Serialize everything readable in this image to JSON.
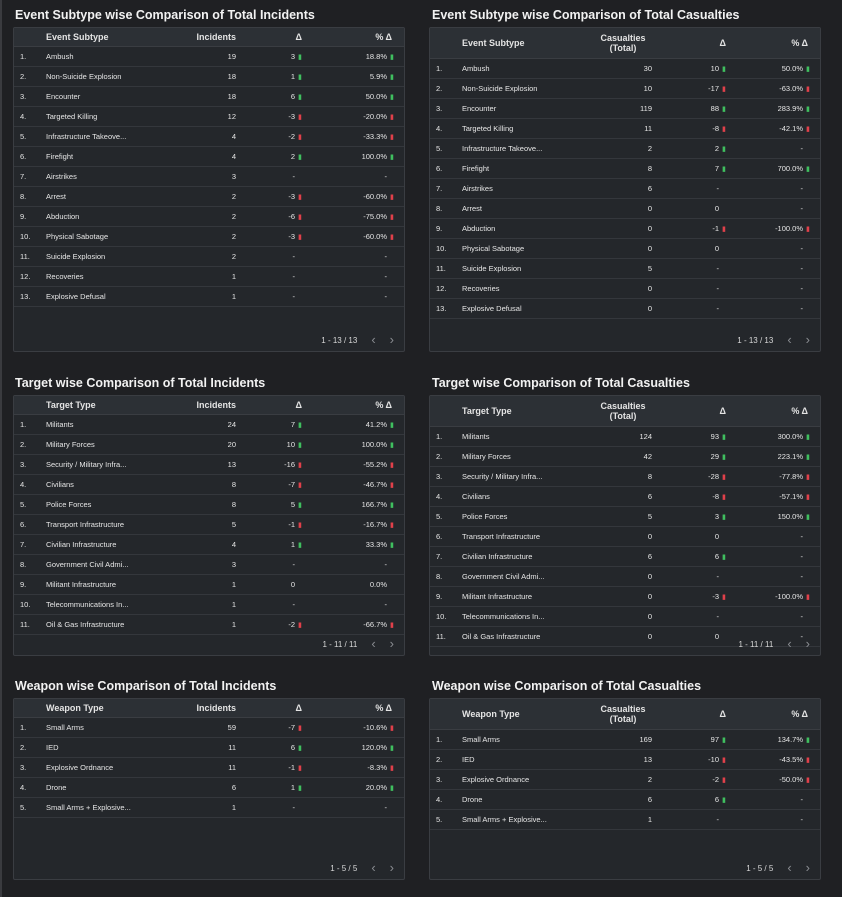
{
  "ui": {
    "up_glyph": "▮",
    "down_glyph": "▮"
  },
  "panels": [
    {
      "id": "p1",
      "title": "Event Subtype wise Comparison of Total Incidents",
      "kind": "incidents",
      "headers": {
        "category": "Event Subtype",
        "value": "Incidents",
        "delta": "Δ",
        "pct": "% Δ"
      },
      "pagination": "1 - 13 / 13",
      "rows": [
        {
          "idx": "1.",
          "cat": "Ambush",
          "value": "19",
          "delta": "3",
          "delta_dir": "up",
          "pct": "18.8%",
          "pct_dir": "up"
        },
        {
          "idx": "2.",
          "cat": "Non-Suicide Explosion",
          "value": "18",
          "delta": "1",
          "delta_dir": "up",
          "pct": "5.9%",
          "pct_dir": "up"
        },
        {
          "idx": "3.",
          "cat": "Encounter",
          "value": "18",
          "delta": "6",
          "delta_dir": "up",
          "pct": "50.0%",
          "pct_dir": "up"
        },
        {
          "idx": "4.",
          "cat": "Targeted Killing",
          "value": "12",
          "delta": "-3",
          "delta_dir": "down",
          "pct": "-20.0%",
          "pct_dir": "down"
        },
        {
          "idx": "5.",
          "cat": "Infrastructure Takeove...",
          "value": "4",
          "delta": "-2",
          "delta_dir": "down",
          "pct": "-33.3%",
          "pct_dir": "down"
        },
        {
          "idx": "6.",
          "cat": "Firefight",
          "value": "4",
          "delta": "2",
          "delta_dir": "up",
          "pct": "100.0%",
          "pct_dir": "up"
        },
        {
          "idx": "7.",
          "cat": "Airstrikes",
          "value": "3",
          "delta": "-",
          "delta_dir": "none",
          "pct": "-",
          "pct_dir": "none"
        },
        {
          "idx": "8.",
          "cat": "Arrest",
          "value": "2",
          "delta": "-3",
          "delta_dir": "down",
          "pct": "-60.0%",
          "pct_dir": "down"
        },
        {
          "idx": "9.",
          "cat": "Abduction",
          "value": "2",
          "delta": "-6",
          "delta_dir": "down",
          "pct": "-75.0%",
          "pct_dir": "down"
        },
        {
          "idx": "10.",
          "cat": "Physical Sabotage",
          "value": "2",
          "delta": "-3",
          "delta_dir": "down",
          "pct": "-60.0%",
          "pct_dir": "down"
        },
        {
          "idx": "11.",
          "cat": "Suicide Explosion",
          "value": "2",
          "delta": "-",
          "delta_dir": "none",
          "pct": "-",
          "pct_dir": "none"
        },
        {
          "idx": "12.",
          "cat": "Recoveries",
          "value": "1",
          "delta": "-",
          "delta_dir": "none",
          "pct": "-",
          "pct_dir": "none"
        },
        {
          "idx": "13.",
          "cat": "Explosive Defusal",
          "value": "1",
          "delta": "-",
          "delta_dir": "none",
          "pct": "-",
          "pct_dir": "none"
        }
      ]
    },
    {
      "id": "p2",
      "title": "Event Subtype wise Comparison of Total Casualties",
      "kind": "casualties",
      "headers": {
        "category": "Event Subtype",
        "value_line1": "Casualties",
        "value_line2": "(Total)",
        "delta": "Δ",
        "pct": "% Δ"
      },
      "pagination": "1 - 13 / 13",
      "rows": [
        {
          "idx": "1.",
          "cat": "Ambush",
          "value": "30",
          "delta": "10",
          "delta_dir": "up",
          "pct": "50.0%",
          "pct_dir": "up"
        },
        {
          "idx": "2.",
          "cat": "Non-Suicide Explosion",
          "value": "10",
          "delta": "-17",
          "delta_dir": "down",
          "pct": "-63.0%",
          "pct_dir": "down"
        },
        {
          "idx": "3.",
          "cat": "Encounter",
          "value": "119",
          "delta": "88",
          "delta_dir": "up",
          "pct": "283.9%",
          "pct_dir": "up"
        },
        {
          "idx": "4.",
          "cat": "Targeted Killing",
          "value": "11",
          "delta": "-8",
          "delta_dir": "down",
          "pct": "-42.1%",
          "pct_dir": "down"
        },
        {
          "idx": "5.",
          "cat": "Infrastructure Takeove...",
          "value": "2",
          "delta": "2",
          "delta_dir": "up",
          "pct": "-",
          "pct_dir": "none"
        },
        {
          "idx": "6.",
          "cat": "Firefight",
          "value": "8",
          "delta": "7",
          "delta_dir": "up",
          "pct": "700.0%",
          "pct_dir": "up"
        },
        {
          "idx": "7.",
          "cat": "Airstrikes",
          "value": "6",
          "delta": "-",
          "delta_dir": "none",
          "pct": "-",
          "pct_dir": "none"
        },
        {
          "idx": "8.",
          "cat": "Arrest",
          "value": "0",
          "delta": "0",
          "delta_dir": "none",
          "pct": "-",
          "pct_dir": "none"
        },
        {
          "idx": "9.",
          "cat": "Abduction",
          "value": "0",
          "delta": "-1",
          "delta_dir": "down",
          "pct": "-100.0%",
          "pct_dir": "down"
        },
        {
          "idx": "10.",
          "cat": "Physical Sabotage",
          "value": "0",
          "delta": "0",
          "delta_dir": "none",
          "pct": "-",
          "pct_dir": "none"
        },
        {
          "idx": "11.",
          "cat": "Suicide Explosion",
          "value": "5",
          "delta": "-",
          "delta_dir": "none",
          "pct": "-",
          "pct_dir": "none"
        },
        {
          "idx": "12.",
          "cat": "Recoveries",
          "value": "0",
          "delta": "-",
          "delta_dir": "none",
          "pct": "-",
          "pct_dir": "none"
        },
        {
          "idx": "13.",
          "cat": "Explosive Defusal",
          "value": "0",
          "delta": "-",
          "delta_dir": "none",
          "pct": "-",
          "pct_dir": "none"
        }
      ]
    },
    {
      "id": "p3",
      "title": "Target wise Comparison of Total Incidents",
      "kind": "incidents",
      "headers": {
        "category": "Target Type",
        "value": "Incidents",
        "delta": "Δ",
        "pct": "% Δ"
      },
      "pagination": "1 - 11 / 11",
      "rows": [
        {
          "idx": "1.",
          "cat": "Militants",
          "value": "24",
          "delta": "7",
          "delta_dir": "up",
          "pct": "41.2%",
          "pct_dir": "up"
        },
        {
          "idx": "2.",
          "cat": "Military Forces",
          "value": "20",
          "delta": "10",
          "delta_dir": "up",
          "pct": "100.0%",
          "pct_dir": "up"
        },
        {
          "idx": "3.",
          "cat": "Security / Military Infra...",
          "value": "13",
          "delta": "-16",
          "delta_dir": "down",
          "pct": "-55.2%",
          "pct_dir": "down"
        },
        {
          "idx": "4.",
          "cat": "Civilians",
          "value": "8",
          "delta": "-7",
          "delta_dir": "down",
          "pct": "-46.7%",
          "pct_dir": "down"
        },
        {
          "idx": "5.",
          "cat": "Police Forces",
          "value": "8",
          "delta": "5",
          "delta_dir": "up",
          "pct": "166.7%",
          "pct_dir": "up"
        },
        {
          "idx": "6.",
          "cat": "Transport Infrastructure",
          "value": "5",
          "delta": "-1",
          "delta_dir": "down",
          "pct": "-16.7%",
          "pct_dir": "down"
        },
        {
          "idx": "7.",
          "cat": "Civilian Infrastructure",
          "value": "4",
          "delta": "1",
          "delta_dir": "up",
          "pct": "33.3%",
          "pct_dir": "up"
        },
        {
          "idx": "8.",
          "cat": "Government Civil Admi...",
          "value": "3",
          "delta": "-",
          "delta_dir": "none",
          "pct": "-",
          "pct_dir": "none"
        },
        {
          "idx": "9.",
          "cat": "Militant Infrastructure",
          "value": "1",
          "delta": "0",
          "delta_dir": "none",
          "pct": "0.0%",
          "pct_dir": "none"
        },
        {
          "idx": "10.",
          "cat": "Telecommunications In...",
          "value": "1",
          "delta": "-",
          "delta_dir": "none",
          "pct": "-",
          "pct_dir": "none"
        },
        {
          "idx": "11.",
          "cat": "Oil & Gas Infrastructure",
          "value": "1",
          "delta": "-2",
          "delta_dir": "down",
          "pct": "-66.7%",
          "pct_dir": "down"
        }
      ]
    },
    {
      "id": "p4",
      "title": "Target wise Comparison of Total Casualties",
      "kind": "casualties",
      "headers": {
        "category": "Target Type",
        "value_line1": "Casualties",
        "value_line2": "(Total)",
        "delta": "Δ",
        "pct": "% Δ"
      },
      "pagination": "1 - 11 / 11",
      "rows": [
        {
          "idx": "1.",
          "cat": "Militants",
          "value": "124",
          "delta": "93",
          "delta_dir": "up",
          "pct": "300.0%",
          "pct_dir": "up"
        },
        {
          "idx": "2.",
          "cat": "Military Forces",
          "value": "42",
          "delta": "29",
          "delta_dir": "up",
          "pct": "223.1%",
          "pct_dir": "up"
        },
        {
          "idx": "3.",
          "cat": "Security / Military Infra...",
          "value": "8",
          "delta": "-28",
          "delta_dir": "down",
          "pct": "-77.8%",
          "pct_dir": "down"
        },
        {
          "idx": "4.",
          "cat": "Civilians",
          "value": "6",
          "delta": "-8",
          "delta_dir": "down",
          "pct": "-57.1%",
          "pct_dir": "down"
        },
        {
          "idx": "5.",
          "cat": "Police Forces",
          "value": "5",
          "delta": "3",
          "delta_dir": "up",
          "pct": "150.0%",
          "pct_dir": "up"
        },
        {
          "idx": "6.",
          "cat": "Transport Infrastructure",
          "value": "0",
          "delta": "0",
          "delta_dir": "none",
          "pct": "-",
          "pct_dir": "none"
        },
        {
          "idx": "7.",
          "cat": "Civilian Infrastructure",
          "value": "6",
          "delta": "6",
          "delta_dir": "up",
          "pct": "-",
          "pct_dir": "none"
        },
        {
          "idx": "8.",
          "cat": "Government Civil Admi...",
          "value": "0",
          "delta": "-",
          "delta_dir": "none",
          "pct": "-",
          "pct_dir": "none"
        },
        {
          "idx": "9.",
          "cat": "Militant Infrastructure",
          "value": "0",
          "delta": "-3",
          "delta_dir": "down",
          "pct": "-100.0%",
          "pct_dir": "down"
        },
        {
          "idx": "10.",
          "cat": "Telecommunications In...",
          "value": "0",
          "delta": "-",
          "delta_dir": "none",
          "pct": "-",
          "pct_dir": "none"
        },
        {
          "idx": "11.",
          "cat": "Oil & Gas Infrastructure",
          "value": "0",
          "delta": "0",
          "delta_dir": "none",
          "pct": "-",
          "pct_dir": "none"
        }
      ]
    },
    {
      "id": "p5",
      "title": "Weapon wise Comparison of Total Incidents",
      "kind": "incidents",
      "headers": {
        "category": "Weapon Type",
        "value": "Incidents",
        "delta": "Δ",
        "pct": "% Δ"
      },
      "pagination": "1 - 5 / 5",
      "rows": [
        {
          "idx": "1.",
          "cat": "Small Arms",
          "value": "59",
          "delta": "-7",
          "delta_dir": "down",
          "pct": "-10.6%",
          "pct_dir": "down"
        },
        {
          "idx": "2.",
          "cat": "IED",
          "value": "11",
          "delta": "6",
          "delta_dir": "up",
          "pct": "120.0%",
          "pct_dir": "up"
        },
        {
          "idx": "3.",
          "cat": "Explosive Ordnance",
          "value": "11",
          "delta": "-1",
          "delta_dir": "down",
          "pct": "-8.3%",
          "pct_dir": "down"
        },
        {
          "idx": "4.",
          "cat": "Drone",
          "value": "6",
          "delta": "1",
          "delta_dir": "up",
          "pct": "20.0%",
          "pct_dir": "up"
        },
        {
          "idx": "5.",
          "cat": "Small Arms + Explosive...",
          "value": "1",
          "delta": "-",
          "delta_dir": "none",
          "pct": "-",
          "pct_dir": "none"
        }
      ]
    },
    {
      "id": "p6",
      "title": "Weapon wise Comparison of Total Casualties",
      "kind": "casualties",
      "headers": {
        "category": "Weapon Type",
        "value_line1": "Casualties",
        "value_line2": "(Total)",
        "delta": "Δ",
        "pct": "% Δ"
      },
      "pagination": "1 - 5 / 5",
      "rows": [
        {
          "idx": "1.",
          "cat": "Small Arms",
          "value": "169",
          "delta": "97",
          "delta_dir": "up",
          "pct": "134.7%",
          "pct_dir": "up"
        },
        {
          "idx": "2.",
          "cat": "IED",
          "value": "13",
          "delta": "-10",
          "delta_dir": "down",
          "pct": "-43.5%",
          "pct_dir": "down"
        },
        {
          "idx": "3.",
          "cat": "Explosive Ordnance",
          "value": "2",
          "delta": "-2",
          "delta_dir": "down",
          "pct": "-50.0%",
          "pct_dir": "down"
        },
        {
          "idx": "4.",
          "cat": "Drone",
          "value": "6",
          "delta": "6",
          "delta_dir": "up",
          "pct": "-",
          "pct_dir": "none"
        },
        {
          "idx": "5.",
          "cat": "Small Arms + Explosive...",
          "value": "1",
          "delta": "-",
          "delta_dir": "none",
          "pct": "-",
          "pct_dir": "none"
        }
      ]
    }
  ]
}
